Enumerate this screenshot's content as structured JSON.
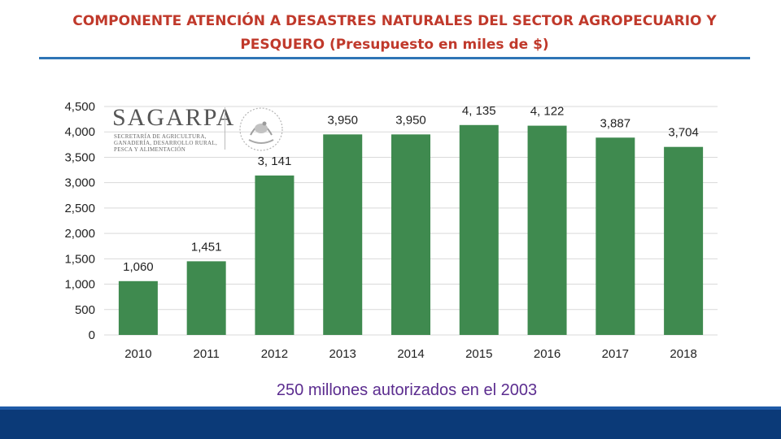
{
  "title": "COMPONENTE ATENCIÓN A DESASTRES NATURALES DEL SECTOR AGROPECUARIO Y PESQUERO (Presupuesto en miles de $)",
  "footnote": "250 millones autorizados  en el 2003",
  "logo": {
    "name": "SAGARPA",
    "subtitle": "SECRETARÍA DE AGRICULTURA, GANADERÍA, DESARROLLO RURAL, PESCA Y ALIMENTACIÓN"
  },
  "colors": {
    "bar": "#3f8a4f",
    "title": "#c0392b",
    "footnote": "#5b2c8f",
    "band": "#0b3a78",
    "rule": "#2e75b6"
  },
  "chart_data": {
    "type": "bar",
    "categories": [
      "2010",
      "2011",
      "2012",
      "2013",
      "2014",
      "2015",
      "2016",
      "2017",
      "2018"
    ],
    "values": [
      1060,
      1451,
      3141,
      3950,
      3950,
      4135,
      4122,
      3887,
      3704
    ],
    "data_labels": [
      "1,060",
      "1,451",
      "3, 141",
      "3,950",
      "3,950",
      "4, 135",
      "4, 122",
      "3,887",
      "3,704"
    ],
    "yticks": [
      "0",
      "500",
      "1,000",
      "1,500",
      "2,000",
      "2,500",
      "3,000",
      "3,500",
      "4,000",
      "4,500"
    ],
    "ylim": [
      0,
      4500
    ],
    "grid": true,
    "legend": "none"
  }
}
